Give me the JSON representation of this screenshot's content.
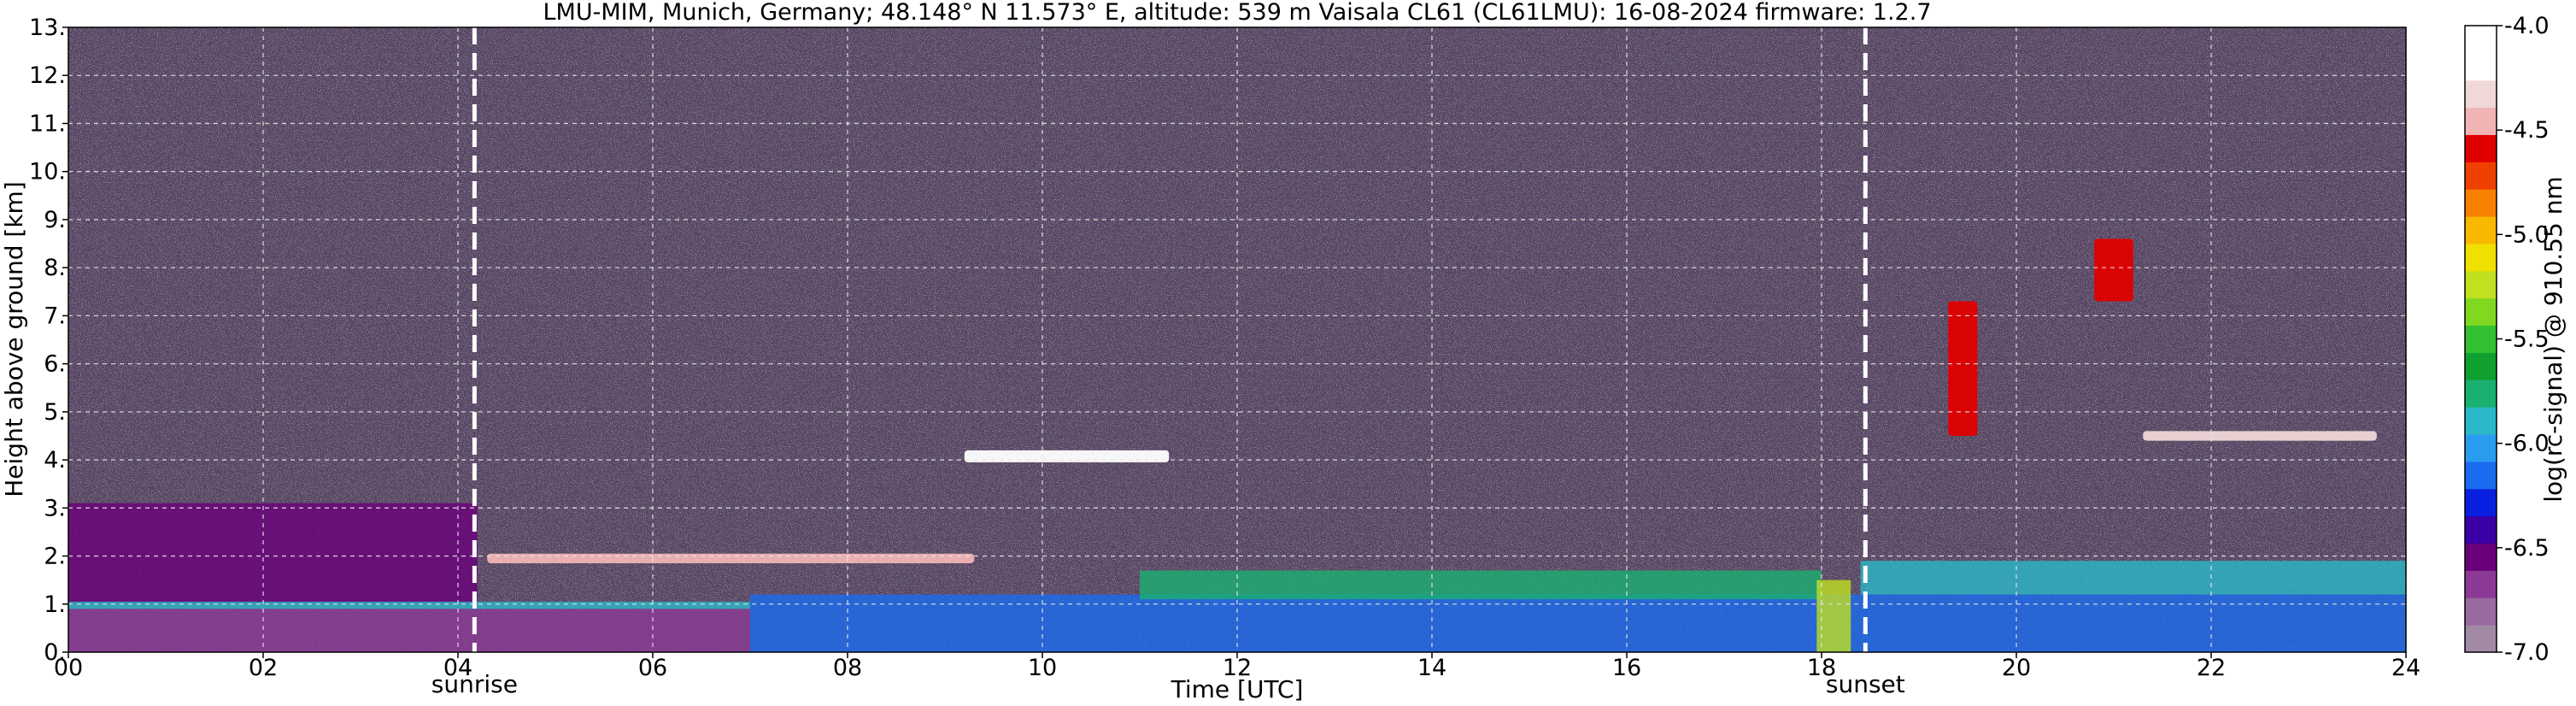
{
  "chart_data": {
    "type": "heatmap",
    "title": "LMU-MIM, Munich, Germany; 48.148° N 11.573° E, altitude: 539 m    Vaisala CL61 (CL61LMU): 16-08-2024    firmware: 1.2.7",
    "xlabel": "Time [UTC]",
    "ylabel": "Height above ground [km]",
    "xlim": [
      0,
      24
    ],
    "ylim": [
      0,
      13
    ],
    "x_ticks": [
      "00",
      "02",
      "04",
      "06",
      "08",
      "10",
      "12",
      "14",
      "16",
      "18",
      "20",
      "22",
      "24"
    ],
    "x_tick_values": [
      0,
      2,
      4,
      6,
      8,
      10,
      12,
      14,
      16,
      18,
      20,
      22,
      24
    ],
    "y_ticks": [
      "0.",
      "1.",
      "2.",
      "3.",
      "4.",
      "5.",
      "6.",
      "7.",
      "8.",
      "9.",
      "10.",
      "11.",
      "12.",
      "13."
    ],
    "y_tick_values": [
      0,
      1,
      2,
      3,
      4,
      5,
      6,
      7,
      8,
      9,
      10,
      11,
      12,
      13
    ],
    "grid": true,
    "colorbar": {
      "label": "log(rc-signal) @ 910.55 nm",
      "range": [
        -7.0,
        -4.0
      ],
      "ticks": [
        "-7.0",
        "-6.5",
        "-6.0",
        "-5.5",
        "-5.0",
        "-4.5",
        "-4.0"
      ],
      "tick_values": [
        -7.0,
        -6.5,
        -6.0,
        -5.5,
        -5.0,
        -4.5,
        -4.0
      ],
      "colors": [
        "#a28aa5",
        "#9a6aa0",
        "#8c3a96",
        "#6a007a",
        "#3a00a6",
        "#0a20e0",
        "#1a6cf0",
        "#2a9cf0",
        "#2ab8c8",
        "#1ab070",
        "#10a030",
        "#30c030",
        "#80d820",
        "#c0e020",
        "#f0e000",
        "#f8b800",
        "#f88000",
        "#f04000",
        "#e00000",
        "#f0b4b4",
        "#f0d8d8",
        "#ffffff",
        "#ffffff"
      ]
    },
    "events": [
      {
        "label": "sunrise",
        "time": 4.17
      },
      {
        "label": "sunset",
        "time": 18.45
      }
    ],
    "features": [
      {
        "kind": "noise",
        "t0": 0,
        "t1": 24,
        "h0": 3.0,
        "h1": 13.0,
        "level": -6.3
      },
      {
        "kind": "aerosol_layer",
        "t0": 0,
        "t1": 4.2,
        "h0": 2.0,
        "h1": 3.1,
        "level": -6.5
      },
      {
        "kind": "aerosol_layer",
        "t0": 0,
        "t1": 4.2,
        "h0": 1.0,
        "h1": 2.0,
        "level": -6.6
      },
      {
        "kind": "aerosol_layer",
        "t0": 0,
        "t1": 7.0,
        "h0": 0.9,
        "h1": 1.05,
        "level": -5.9
      },
      {
        "kind": "aerosol_layer",
        "t0": 0,
        "t1": 7.0,
        "h0": 0.0,
        "h1": 0.9,
        "level": -6.7
      },
      {
        "kind": "boundary_layer",
        "t0": 7.0,
        "t1": 24,
        "h0": 0.0,
        "h1": 1.2,
        "level": -6.1
      },
      {
        "kind": "boundary_layer_top",
        "t0": 11.0,
        "t1": 18.0,
        "h0": 1.1,
        "h1": 1.7,
        "level": -5.8
      },
      {
        "kind": "boundary_layer_top",
        "t0": 18.4,
        "t1": 24,
        "h0": 1.2,
        "h1": 1.9,
        "level": -5.9
      },
      {
        "kind": "cloud",
        "t0": 9.2,
        "t1": 11.3,
        "h0": 3.95,
        "h1": 4.2,
        "level": -4.2
      },
      {
        "kind": "cloud",
        "t0": 19.3,
        "t1": 19.6,
        "h0": 4.5,
        "h1": 7.3,
        "level": -4.6
      },
      {
        "kind": "cloud",
        "t0": 20.8,
        "t1": 21.2,
        "h0": 7.3,
        "h1": 8.6,
        "level": -4.6
      },
      {
        "kind": "cloud",
        "t0": 21.3,
        "t1": 23.7,
        "h0": 4.4,
        "h1": 4.6,
        "level": -4.3
      },
      {
        "kind": "cloud",
        "t0": 4.3,
        "t1": 9.3,
        "h0": 1.85,
        "h1": 2.05,
        "level": -4.4
      },
      {
        "kind": "rain",
        "t0": 17.95,
        "t1": 18.3,
        "h0": 0.0,
        "h1": 1.5,
        "level": -5.2
      }
    ]
  }
}
